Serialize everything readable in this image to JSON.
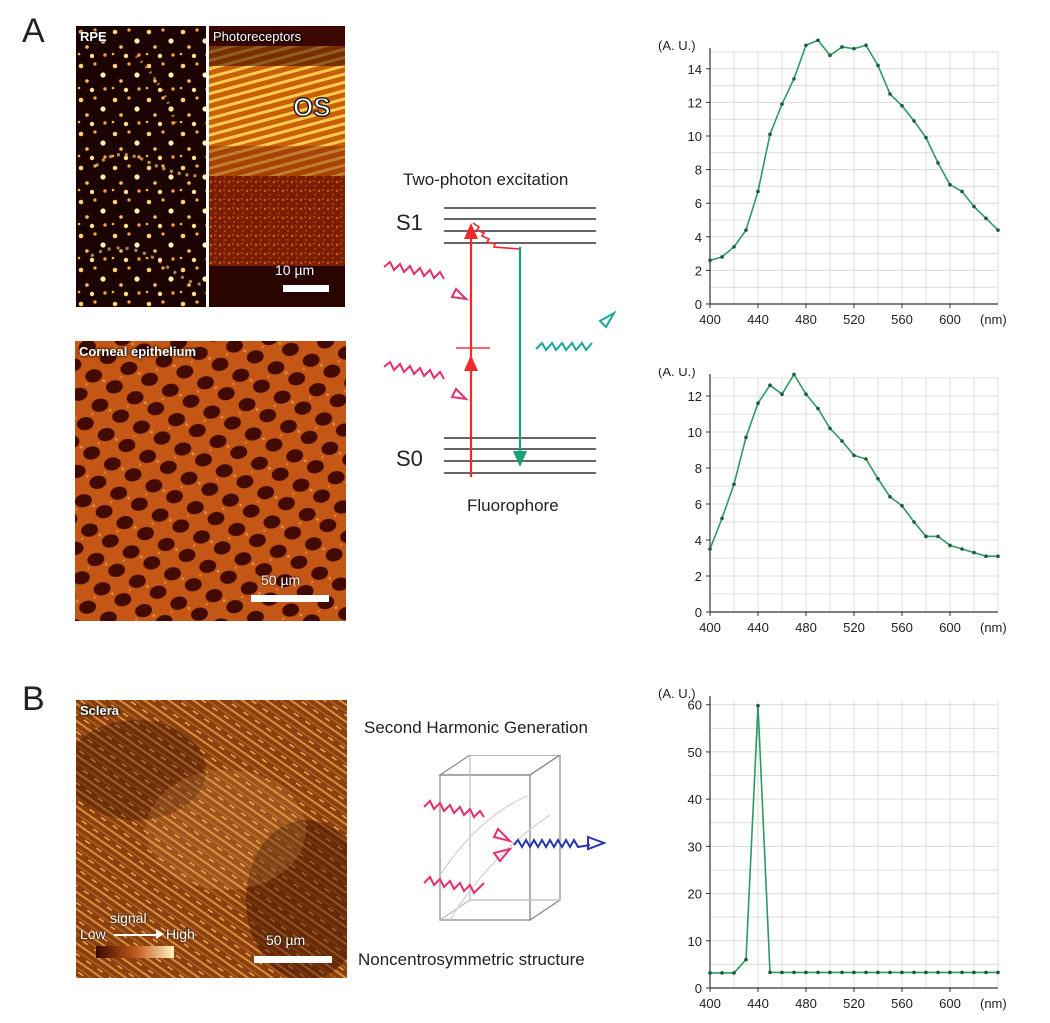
{
  "panel_a": {
    "letter": "A",
    "rpe_label": "RPE",
    "photoreceptors_label": "Photoreceptors",
    "os_label": "OS",
    "scale_top": "10 µm",
    "corneal_label": "Corneal epithelium",
    "scale_corneal": "50 µm",
    "diagram_title": "Two-photon excitation",
    "s1_label": "S1",
    "s0_label": "S0",
    "fluorophore_label": "Fluorophore"
  },
  "panel_b": {
    "letter": "B",
    "sclera_label": "Sclera",
    "signal_label": "signal",
    "low_label": "Low",
    "high_label": "High",
    "scale_sclera": "50 µm",
    "diagram_title": "Second Harmonic Generation",
    "structure_label": "Noncentrosymmetric structure"
  },
  "chart_data": [
    {
      "type": "line",
      "ylabel": "(A. U.)",
      "xlabel": "(nm)",
      "xlim": [
        400,
        640
      ],
      "ylim": [
        0,
        15
      ],
      "xticks": [
        400,
        440,
        480,
        520,
        560,
        600
      ],
      "yticks": [
        0,
        2,
        4,
        6,
        8,
        10,
        12,
        14
      ],
      "grid": true,
      "color": "#2e9a62",
      "x": [
        400,
        410,
        420,
        430,
        440,
        450,
        460,
        470,
        480,
        490,
        500,
        510,
        520,
        530,
        540,
        550,
        560,
        570,
        580,
        590,
        600,
        610,
        620,
        630,
        640
      ],
      "y": [
        2.6,
        2.8,
        3.4,
        4.4,
        6.7,
        10.1,
        11.9,
        13.4,
        15.4,
        15.7,
        14.8,
        15.3,
        15.2,
        15.4,
        14.2,
        12.5,
        11.8,
        10.9,
        9.9,
        8.4,
        7.1,
        6.7,
        5.8,
        5.1,
        4.4
      ]
    },
    {
      "type": "line",
      "ylabel": "(A. U.)",
      "xlabel": "(nm)",
      "xlim": [
        400,
        640
      ],
      "ylim": [
        0,
        13
      ],
      "xticks": [
        400,
        440,
        480,
        520,
        560,
        600
      ],
      "yticks": [
        0,
        2,
        4,
        6,
        8,
        10,
        12
      ],
      "grid": true,
      "color": "#2e9a62",
      "x": [
        400,
        410,
        420,
        430,
        440,
        450,
        460,
        470,
        480,
        490,
        500,
        510,
        520,
        530,
        540,
        550,
        560,
        570,
        580,
        590,
        600,
        610,
        620,
        630,
        640
      ],
      "y": [
        3.5,
        5.2,
        7.1,
        9.7,
        11.6,
        12.6,
        12.1,
        13.2,
        12.1,
        11.3,
        10.2,
        9.5,
        8.7,
        8.5,
        7.4,
        6.4,
        5.9,
        5.0,
        4.2,
        4.2,
        3.7,
        3.5,
        3.3,
        3.1,
        3.1
      ]
    },
    {
      "type": "line",
      "ylabel": "(A. U.)",
      "xlabel": "(nm)",
      "xlim": [
        400,
        640
      ],
      "ylim": [
        0,
        61
      ],
      "xticks": [
        400,
        440,
        480,
        520,
        560,
        600
      ],
      "yticks": [
        0,
        10,
        20,
        30,
        40,
        50,
        60
      ],
      "grid": true,
      "color": "#2e9a62",
      "x": [
        400,
        410,
        420,
        430,
        440,
        450,
        460,
        470,
        480,
        490,
        500,
        510,
        520,
        530,
        540,
        550,
        560,
        570,
        580,
        590,
        600,
        610,
        620,
        630,
        640
      ],
      "y": [
        3.2,
        3.2,
        3.2,
        6.0,
        59.8,
        3.3,
        3.3,
        3.3,
        3.3,
        3.3,
        3.3,
        3.3,
        3.3,
        3.3,
        3.3,
        3.3,
        3.3,
        3.3,
        3.3,
        3.3,
        3.3,
        3.3,
        3.3,
        3.3,
        3.3
      ]
    }
  ]
}
